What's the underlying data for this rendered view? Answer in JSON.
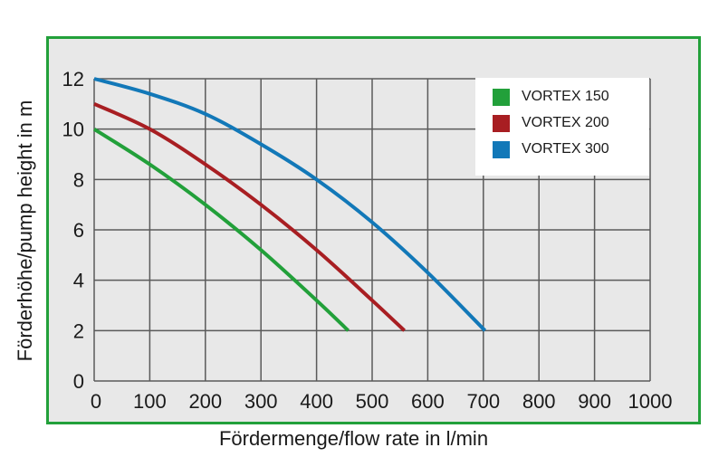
{
  "chart_data": {
    "type": "line",
    "title": "",
    "xlabel": "Fördermenge/flow rate in l/min",
    "ylabel": "Förderhöhe/pump height in m",
    "xlim": [
      0,
      1000
    ],
    "ylim": [
      0,
      12
    ],
    "xticks": [
      0,
      100,
      200,
      300,
      400,
      500,
      600,
      700,
      800,
      900,
      1000
    ],
    "yticks": [
      0,
      2,
      4,
      6,
      8,
      10,
      12
    ],
    "grid": true,
    "legend_position": "upper right",
    "series": [
      {
        "name": "VORTEX 150",
        "color": "#22a03a",
        "x": [
          0,
          100,
          200,
          300,
          400,
          457
        ],
        "y": [
          10.0,
          8.6,
          7.0,
          5.2,
          3.2,
          2.0
        ]
      },
      {
        "name": "VORTEX 200",
        "color": "#a81e22",
        "x": [
          0,
          100,
          200,
          300,
          400,
          500,
          558
        ],
        "y": [
          11.0,
          10.0,
          8.6,
          7.0,
          5.2,
          3.2,
          2.0
        ]
      },
      {
        "name": "VORTEX 300",
        "color": "#1278b8",
        "x": [
          0,
          100,
          200,
          300,
          400,
          500,
          600,
          703
        ],
        "y": [
          12.0,
          11.4,
          10.6,
          9.4,
          8.0,
          6.3,
          4.3,
          2.0
        ]
      }
    ]
  },
  "legend": {
    "items": [
      {
        "label": "VORTEX 150",
        "color": "#22a03a"
      },
      {
        "label": "VORTEX 200",
        "color": "#a81e22"
      },
      {
        "label": "VORTEX 300",
        "color": "#1278b8"
      }
    ]
  },
  "colors": {
    "frame": "#22a03a",
    "plot_bg": "#e8e8e8",
    "grid": "#5a5a5a"
  }
}
